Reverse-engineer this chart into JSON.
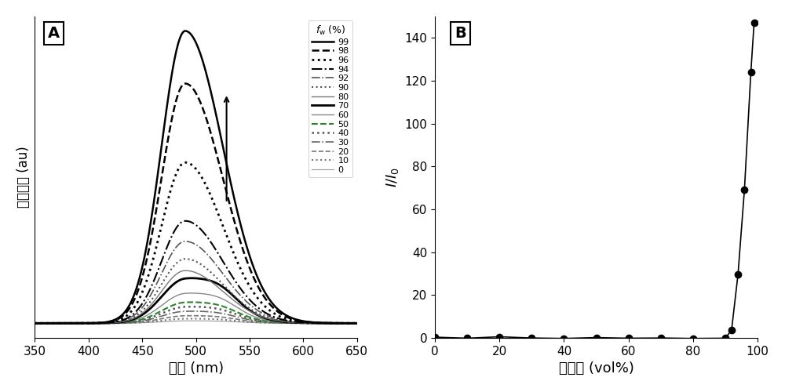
{
  "panel_A": {
    "title": "A",
    "xlabel_ascii": "波长 (nm)",
    "ylabel_ascii": "荧光强度 (au)",
    "xlim": [
      350,
      650
    ],
    "peak_wavelength": 490,
    "series": [
      {
        "fw": 99,
        "peak": 1.0,
        "linestyle": "-",
        "color": "#000000",
        "linewidth": 1.8
      },
      {
        "fw": 98,
        "peak": 0.82,
        "linestyle": "--",
        "color": "#000000",
        "linewidth": 1.8
      },
      {
        "fw": 96,
        "peak": 0.55,
        "linestyle": ":",
        "color": "#000000",
        "linewidth": 2.0
      },
      {
        "fw": 94,
        "peak": 0.35,
        "linestyle": "-.",
        "color": "#000000",
        "linewidth": 1.5
      },
      {
        "fw": 92,
        "peak": 0.28,
        "linestyle": "-.",
        "color": "#555555",
        "linewidth": 1.2
      },
      {
        "fw": 90,
        "peak": 0.22,
        "linestyle": ":",
        "color": "#555555",
        "linewidth": 1.5
      },
      {
        "fw": 80,
        "peak": 0.18,
        "linestyle": "-",
        "color": "#777777",
        "linewidth": 1.0
      },
      {
        "fw": 70,
        "peak": 0.15,
        "linestyle": "-",
        "color": "#000000",
        "linewidth": 2.0
      },
      {
        "fw": 60,
        "peak": 0.1,
        "linestyle": "-",
        "color": "#888888",
        "linewidth": 1.0
      },
      {
        "fw": 50,
        "peak": 0.07,
        "linestyle": "--",
        "color": "#228B22",
        "linewidth": 1.5
      },
      {
        "fw": 40,
        "peak": 0.055,
        "linestyle": ":",
        "color": "#555555",
        "linewidth": 1.8
      },
      {
        "fw": 30,
        "peak": 0.04,
        "linestyle": "-.",
        "color": "#666666",
        "linewidth": 1.2
      },
      {
        "fw": 20,
        "peak": 0.025,
        "linestyle": "--",
        "color": "#777777",
        "linewidth": 1.2
      },
      {
        "fw": 10,
        "peak": 0.015,
        "linestyle": ":",
        "color": "#777777",
        "linewidth": 1.5
      },
      {
        "fw": 0,
        "peak": 0.008,
        "linestyle": "-",
        "color": "#999999",
        "linewidth": 0.8
      }
    ]
  },
  "panel_B": {
    "title": "B",
    "xlabel_ascii": "水含量 (vol%)",
    "ylabel_latex": "$I/I_0$",
    "xlim": [
      0,
      100
    ],
    "ylim": [
      0,
      150
    ],
    "x": [
      0,
      10,
      20,
      30,
      40,
      50,
      60,
      70,
      80,
      90,
      92,
      94,
      96,
      98,
      99
    ],
    "y": [
      0.3,
      -0.2,
      0.5,
      -0.1,
      -0.3,
      0.1,
      -0.2,
      -0.1,
      -0.3,
      -0.2,
      3.5,
      29.5,
      69,
      124,
      147
    ]
  }
}
